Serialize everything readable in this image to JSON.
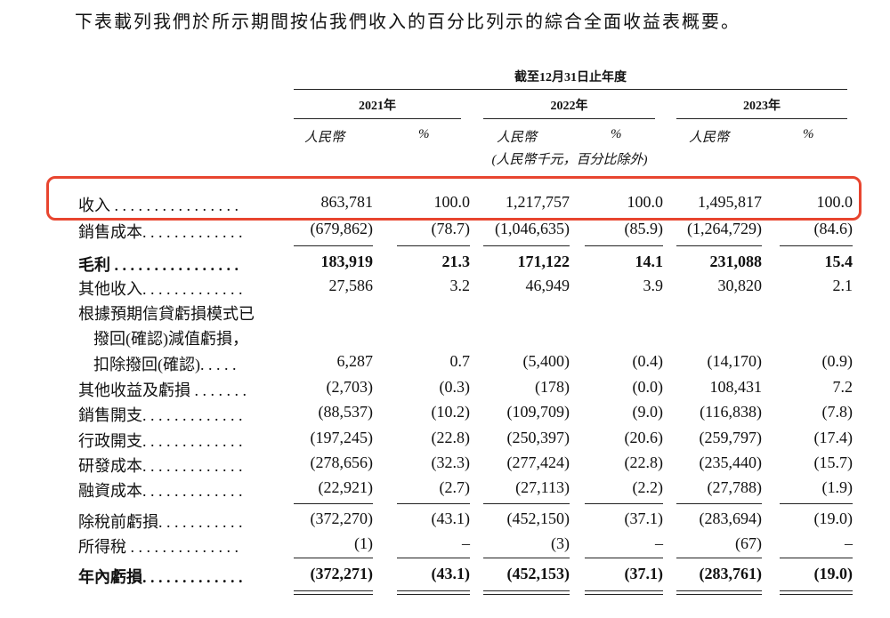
{
  "intro_text": "下表載列我們於所示期間按佔我們收入的百分比列示的綜合全面收益表概要。",
  "period_header": "截至12月31日止年度",
  "years": [
    "2021年",
    "2022年",
    "2023年"
  ],
  "unit_rmb": "人民幣",
  "unit_pct": "%",
  "unit_note": "(人民幣千元，百分比除外)",
  "rows": [
    {
      "label": "收入 . . . . . . . . . . . . . . . .",
      "v": [
        "863,781",
        "100.0",
        "1,217,757",
        "100.0",
        "1,495,817",
        "100.0"
      ]
    },
    {
      "label": "銷售成本. . . . . . . . . . . . .",
      "v": [
        "(679,862)",
        "(78.7)",
        "(1,046,635)",
        "(85.9)",
        "(1,264,729)",
        "(84.6)"
      ]
    },
    {
      "label": "毛利 . . . . . . . . . . . . . . . .",
      "v": [
        "183,919",
        "21.3",
        "171,122",
        "14.1",
        "231,088",
        "15.4"
      ]
    },
    {
      "label": "其他收入. . . . . . . . . . . . .",
      "v": [
        "27,586",
        "3.2",
        "46,949",
        "3.9",
        "30,820",
        "2.1"
      ]
    },
    {
      "label": "根據預期信貸虧損模式已",
      "v": [
        "",
        "",
        "",
        "",
        "",
        ""
      ]
    },
    {
      "label": "撥回(確認)減值虧損，",
      "v": [
        "",
        "",
        "",
        "",
        "",
        ""
      ]
    },
    {
      "label": "扣除撥回(確認). . . . .",
      "v": [
        "6,287",
        "0.7",
        "(5,400)",
        "(0.4)",
        "(14,170)",
        "(0.9)"
      ]
    },
    {
      "label": "其他收益及虧損 . . . . . . .",
      "v": [
        "(2,703)",
        "(0.3)",
        "(178)",
        "(0.0)",
        "108,431",
        "7.2"
      ]
    },
    {
      "label": "銷售開支. . . . . . . . . . . . .",
      "v": [
        "(88,537)",
        "(10.2)",
        "(109,709)",
        "(9.0)",
        "(116,838)",
        "(7.8)"
      ]
    },
    {
      "label": "行政開支. . . . . . . . . . . . .",
      "v": [
        "(197,245)",
        "(22.8)",
        "(250,397)",
        "(20.6)",
        "(259,797)",
        "(17.4)"
      ]
    },
    {
      "label": "研發成本. . . . . . . . . . . . .",
      "v": [
        "(278,656)",
        "(32.3)",
        "(277,424)",
        "(22.8)",
        "(235,440)",
        "(15.7)"
      ]
    },
    {
      "label": "融資成本. . . . . . . . . . . . .",
      "v": [
        "(22,921)",
        "(2.7)",
        "(27,113)",
        "(2.2)",
        "(27,788)",
        "(1.9)"
      ]
    },
    {
      "label": "除稅前虧損. . . . . . . . . . .",
      "v": [
        "(372,270)",
        "(43.1)",
        "(452,150)",
        "(37.1)",
        "(283,694)",
        "(19.0)"
      ]
    },
    {
      "label": "所得稅 . . . . . . . . . . . . . .",
      "v": [
        "(1)",
        "–",
        "(3)",
        "–",
        "(67)",
        "–"
      ]
    },
    {
      "label": "年內虧損. . . . . . . . . . . . .",
      "v": [
        "(372,271)",
        "(43.1)",
        "(452,153)",
        "(37.1)",
        "(283,761)",
        "(19.0)"
      ]
    }
  ]
}
